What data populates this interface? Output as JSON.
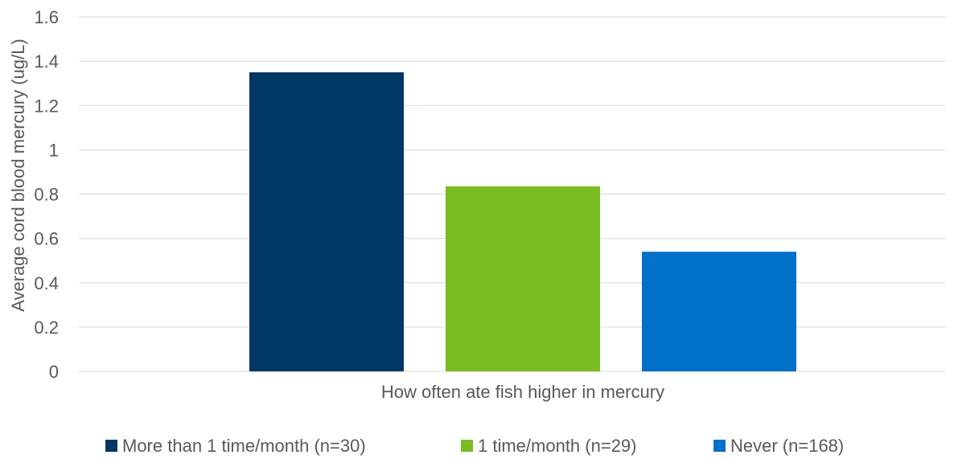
{
  "chart_data": {
    "type": "bar",
    "title": "",
    "xlabel": "How often ate fish higher in mercury",
    "ylabel": "Average cord blood mercury (ug/L)",
    "ylim": [
      0,
      1.6
    ],
    "yticks": [
      "0",
      "0.2",
      "0.4",
      "0.6",
      "0.8",
      "1",
      "1.2",
      "1.4",
      "1.6"
    ],
    "grid": true,
    "legend_position": "bottom",
    "series": [
      {
        "name": "More than 1 time/month (n=30)",
        "value": 1.35,
        "color": "#003764"
      },
      {
        "name": "1 time/month (n=29)",
        "value": 0.835,
        "color": "#7ABD23"
      },
      {
        "name": "Never (n=168)",
        "value": 0.54,
        "color": "#0070C9"
      }
    ]
  }
}
